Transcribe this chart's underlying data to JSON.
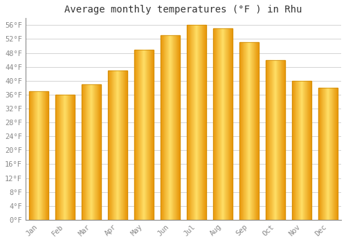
{
  "title": "Average monthly temperatures (°F ) in Rhu",
  "months": [
    "Jan",
    "Feb",
    "Mar",
    "Apr",
    "May",
    "Jun",
    "Jul",
    "Aug",
    "Sep",
    "Oct",
    "Nov",
    "Dec"
  ],
  "values": [
    37,
    36,
    39,
    43,
    49,
    53,
    56,
    55,
    51,
    46,
    40,
    38
  ],
  "bar_color_center": "#FFD966",
  "bar_color_edge": "#E8960A",
  "bar_color_mid": "#FFBB33",
  "background_color": "#FFFFFF",
  "plot_bg_color": "#FFFFFF",
  "ylim": [
    0,
    58
  ],
  "yticks": [
    0,
    4,
    8,
    12,
    16,
    20,
    24,
    28,
    32,
    36,
    40,
    44,
    48,
    52,
    56
  ],
  "ytick_labels": [
    "0°F",
    "4°F",
    "8°F",
    "12°F",
    "16°F",
    "20°F",
    "24°F",
    "28°F",
    "32°F",
    "36°F",
    "40°F",
    "44°F",
    "48°F",
    "52°F",
    "56°F"
  ],
  "grid_color": "#CCCCCC",
  "font_family": "monospace",
  "title_fontsize": 10,
  "tick_fontsize": 7.5,
  "title_color": "#333333",
  "tick_color": "#888888"
}
